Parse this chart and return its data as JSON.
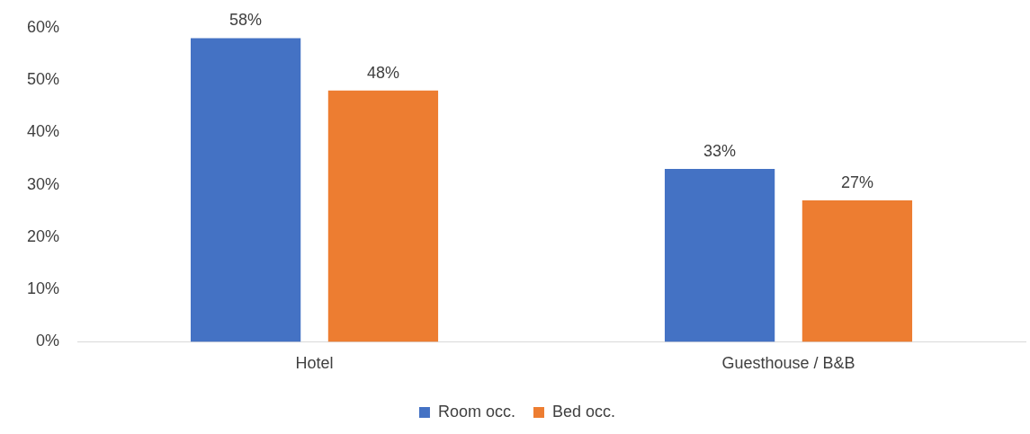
{
  "chart_data": {
    "type": "bar",
    "categories": [
      "Hotel",
      "Guesthouse / B&B"
    ],
    "series": [
      {
        "name": "Room occ.",
        "color": "#4472c4",
        "values": [
          58,
          33
        ],
        "value_labels": [
          "58%",
          "33%"
        ]
      },
      {
        "name": "Bed occ.",
        "color": "#ed7d31",
        "values": [
          48,
          27
        ],
        "value_labels": [
          "48%",
          "27%"
        ]
      }
    ],
    "ylim": [
      0,
      60
    ],
    "yticks": [
      {
        "value": 0,
        "label": "0%"
      },
      {
        "value": 10,
        "label": "10%"
      },
      {
        "value": 20,
        "label": "20%"
      },
      {
        "value": 30,
        "label": "30%"
      },
      {
        "value": 40,
        "label": "40%"
      },
      {
        "value": 50,
        "label": "50%"
      },
      {
        "value": 60,
        "label": "60%"
      }
    ],
    "grid": false,
    "legend": "bottom"
  }
}
